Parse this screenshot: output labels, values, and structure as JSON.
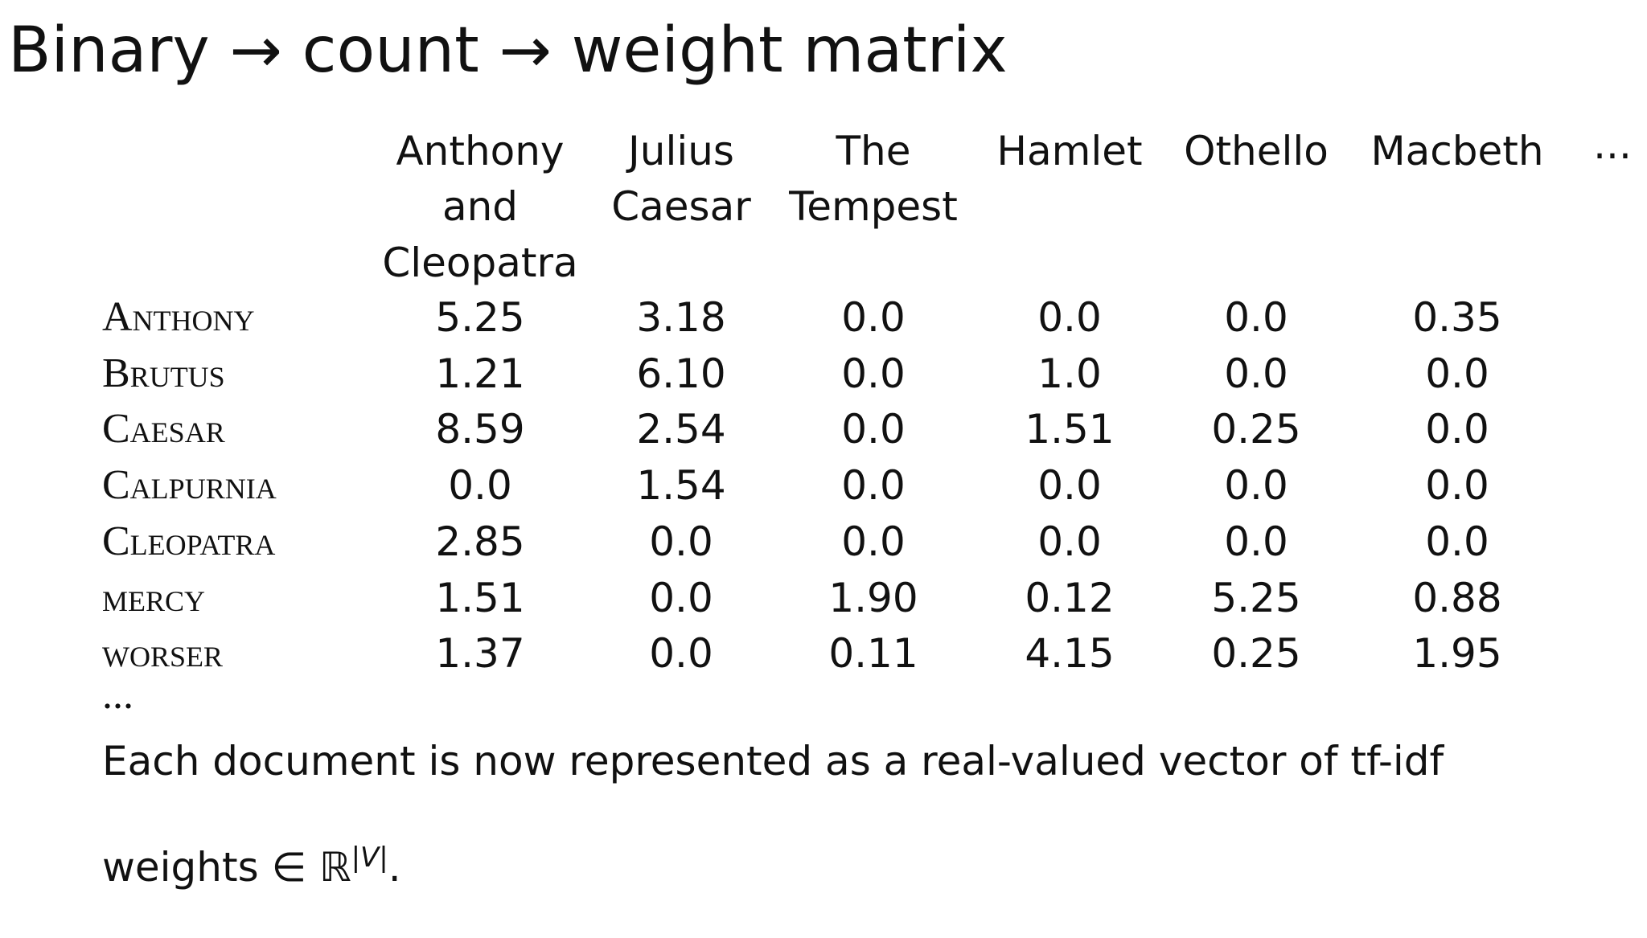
{
  "title": "Binary → count → weight matrix",
  "table": {
    "columns": [
      [
        "Anthony",
        "and",
        "Cleopatra"
      ],
      [
        "Julius",
        "Caesar"
      ],
      [
        "The",
        "Tempest"
      ],
      [
        "Hamlet"
      ],
      [
        "Othello"
      ],
      [
        "Macbeth"
      ],
      [
        "..."
      ]
    ],
    "rows": [
      {
        "term": "Anthony",
        "values": [
          "5.25",
          "3.18",
          "0.0",
          "0.0",
          "0.0",
          "0.35"
        ]
      },
      {
        "term": "Brutus",
        "values": [
          "1.21",
          "6.10",
          "0.0",
          "1.0",
          "0.0",
          "0.0"
        ]
      },
      {
        "term": "Caesar",
        "values": [
          "8.59",
          "2.54",
          "0.0",
          "1.51",
          "0.25",
          "0.0"
        ]
      },
      {
        "term": "Calpurnia",
        "values": [
          "0.0",
          "1.54",
          "0.0",
          "0.0",
          "0.0",
          "0.0"
        ]
      },
      {
        "term": "Cleopatra",
        "values": [
          "2.85",
          "0.0",
          "0.0",
          "0.0",
          "0.0",
          "0.0"
        ]
      },
      {
        "term": "mercy",
        "values": [
          "1.51",
          "0.0",
          "1.90",
          "0.12",
          "5.25",
          "0.88"
        ]
      },
      {
        "term": "worser",
        "values": [
          "1.37",
          "0.0",
          "0.11",
          "4.15",
          "0.25",
          "1.95"
        ]
      }
    ],
    "more_rows": "..."
  },
  "footer": {
    "line1": "Each document is now represented as a real-valued vector of tf-idf",
    "line2": "weights ∈ ℝ",
    "superscript": "|V|",
    "end": "."
  }
}
